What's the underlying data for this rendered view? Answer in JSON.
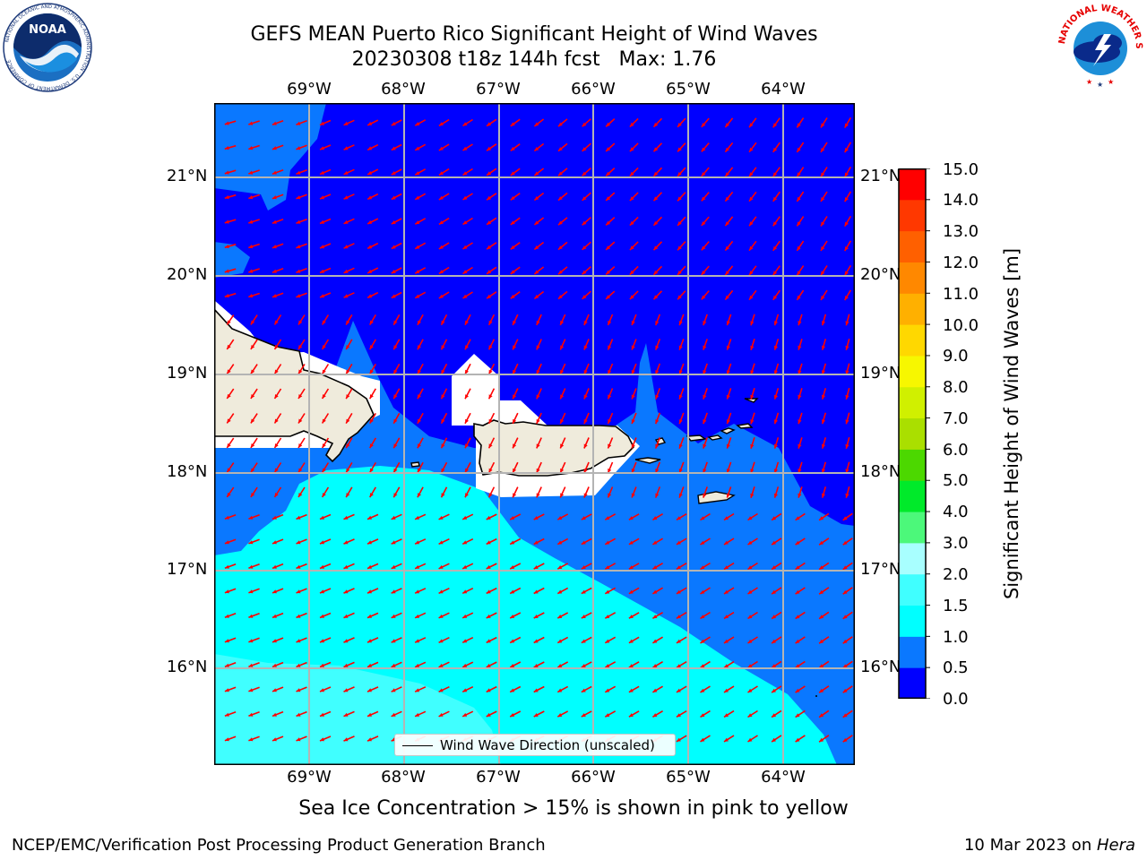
{
  "header": {
    "title_line1": "GEFS MEAN Puerto Rico Significant Height of Wind Waves",
    "title_line2": "20230308 t18z 144h fcst   Max: 1.76"
  },
  "logos": {
    "noaa": {
      "text": "NOAA",
      "ring_text": "NATIONAL OCEANIC AND ATMOSPHERIC ADMINISTRATION · U.S. DEPARTMENT OF COMMERCE"
    },
    "nws": {
      "ring_text": "NATIONAL WEATHER SERVICE"
    }
  },
  "map": {
    "lon_labels": [
      "69°W",
      "68°W",
      "67°W",
      "66°W",
      "65°W",
      "64°W"
    ],
    "lat_labels": [
      "21°N",
      "20°N",
      "19°N",
      "18°N",
      "17°N",
      "16°N"
    ],
    "legend_label": "Wind Wave Direction (unscaled)",
    "land_color": "#efebdc",
    "arrow_color": "#ff0000"
  },
  "colorbar": {
    "title": "Significant Height of Wind Waves [m]",
    "ticks": [
      "0.0",
      "0.5",
      "1.0",
      "1.5",
      "2.0",
      "3.0",
      "4.0",
      "5.0",
      "6.0",
      "7.0",
      "8.0",
      "9.0",
      "10.0",
      "11.0",
      "12.0",
      "13.0",
      "14.0",
      "15.0"
    ],
    "colors": [
      "#0000ff",
      "#0a78ff",
      "#00ffff",
      "#40ffff",
      "#a8ffff",
      "#4cf87a",
      "#00ea2a",
      "#4cd800",
      "#aadf00",
      "#d0f000",
      "#f7f700",
      "#ffd800",
      "#ffb000",
      "#ff8800",
      "#ff6000",
      "#ff3800",
      "#ff0000"
    ]
  },
  "footer": {
    "sea_ice_note": "Sea Ice Concentration > 15% is shown in pink to yellow",
    "left": "NCEP/EMC/Verification Post Processing Product Generation Branch",
    "right_prefix": "10 Mar 2023 on ",
    "right_italic": "Hera"
  }
}
